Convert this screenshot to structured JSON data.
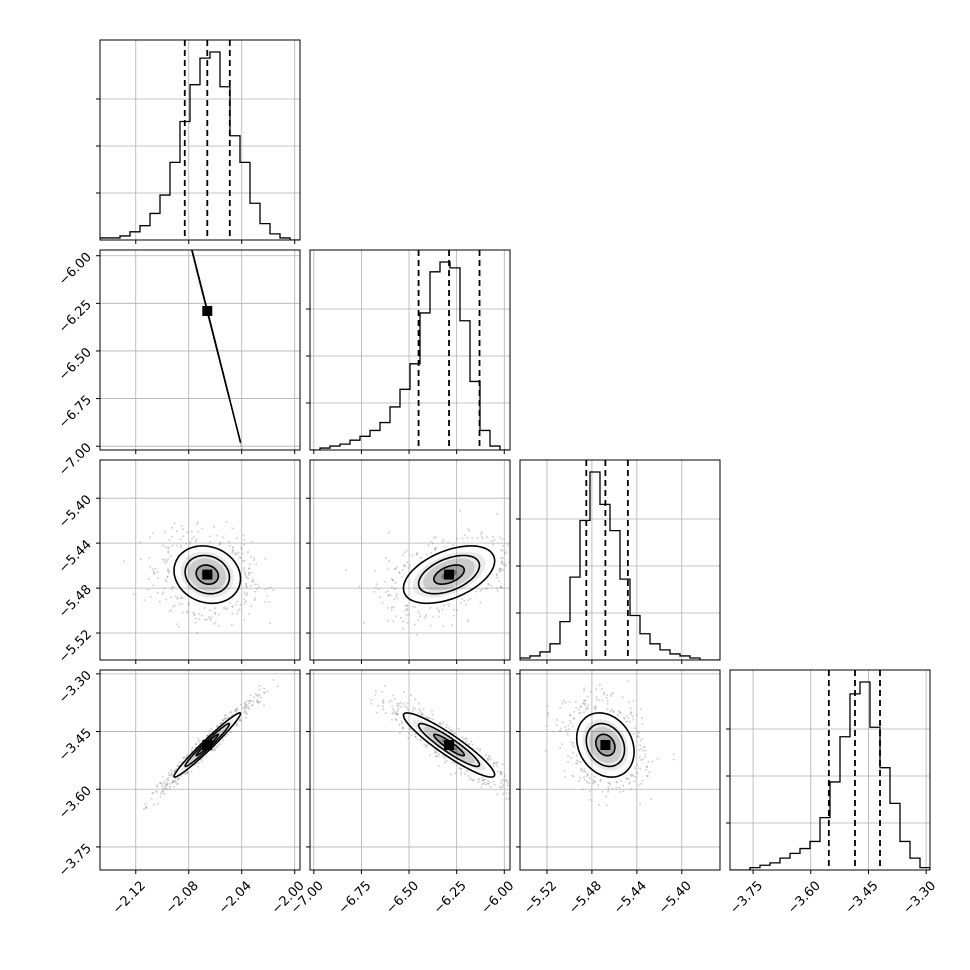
{
  "figure": {
    "type": "corner"
  },
  "chart_data": {
    "type": "corner",
    "n_params": 4,
    "params": [
      {
        "range": [
          -2.147,
          -1.996
        ],
        "ticks": [
          -2.12,
          -2.08,
          -2.04,
          -2.0
        ],
        "tick_labels": [
          "−2.12",
          "−2.08",
          "−2.04",
          "−2.00"
        ],
        "quantiles": [
          -2.083,
          -2.066,
          -2.049
        ]
      },
      {
        "range": [
          -7.02,
          -5.97
        ],
        "ticks": [
          -7.0,
          -6.75,
          -6.5,
          -6.25,
          -6.0
        ],
        "tick_labels": [
          "−7.00",
          "−6.75",
          "−6.50",
          "−6.25",
          "−6.00"
        ],
        "quantiles": [
          -6.45,
          -6.29,
          -6.13
        ]
      },
      {
        "range": [
          -5.544,
          -5.366
        ],
        "ticks": [
          -5.52,
          -5.48,
          -5.44,
          -5.4
        ],
        "tick_labels": [
          "−5.52",
          "−5.48",
          "−5.44",
          "−5.40"
        ],
        "quantiles": [
          -5.485,
          -5.468,
          -5.448
        ]
      },
      {
        "range": [
          -3.81,
          -3.29
        ],
        "ticks": [
          -3.75,
          -3.6,
          -3.45,
          -3.3
        ],
        "tick_labels": [
          "−3.75",
          "−3.60",
          "−3.45",
          "−3.30"
        ],
        "quantiles": [
          -3.553,
          -3.485,
          -3.42
        ]
      }
    ],
    "histograms": [
      {
        "edges_start": -2.147,
        "bin_width": 0.00755,
        "counts": [
          1,
          1,
          2,
          4,
          7,
          13,
          22,
          38,
          58,
          76,
          89,
          92,
          75,
          51,
          38,
          18,
          8,
          3,
          1,
          0
        ]
      },
      {
        "edges_start": -7.02,
        "bin_width": 0.0525,
        "counts": [
          0,
          1,
          2,
          3,
          5,
          7,
          10,
          14,
          22,
          31,
          44,
          70,
          91,
          96,
          93,
          66,
          35,
          10,
          2,
          0
        ]
      },
      {
        "edges_start": -5.544,
        "bin_width": 0.0089,
        "counts": [
          1,
          2,
          4,
          8,
          19,
          41,
          69,
          93,
          77,
          64,
          40,
          22,
          13,
          8,
          5,
          3,
          2,
          1,
          0,
          0
        ]
      },
      {
        "edges_start": -3.81,
        "bin_width": 0.026,
        "counts": [
          0,
          0,
          1,
          2,
          3,
          5,
          7,
          9,
          12,
          22,
          37,
          56,
          74,
          79,
          60,
          43,
          28,
          12,
          5,
          1
        ]
      }
    ],
    "pairs": [
      {
        "x": 0,
        "y": 1,
        "center": [
          -2.066,
          -6.29
        ],
        "cov": [
          [
            0.00028,
            -0.0077
          ],
          [
            -0.0077,
            0.0255
          ]
        ]
      },
      {
        "x": 0,
        "y": 2,
        "center": [
          -2.066,
          -5.468
        ],
        "cov": [
          [
            0.00028,
            -4e-05
          ],
          [
            -4e-05,
            0.00029
          ]
        ]
      },
      {
        "x": 1,
        "y": 2,
        "center": [
          -6.29,
          -5.468
        ],
        "cov": [
          [
            0.0255,
            0.0013
          ],
          [
            0.0013,
            0.00029
          ]
        ]
      },
      {
        "x": 0,
        "y": 3,
        "center": [
          -2.066,
          -3.485
        ],
        "cov": [
          [
            0.00028,
            0.00091
          ],
          [
            0.00091,
            0.0031
          ]
        ]
      },
      {
        "x": 1,
        "y": 3,
        "center": [
          -6.29,
          -3.485
        ],
        "cov": [
          [
            0.0255,
            -0.0082
          ],
          [
            -0.0082,
            0.0031
          ]
        ]
      },
      {
        "x": 2,
        "y": 3,
        "center": [
          -5.468,
          -3.485
        ],
        "cov": [
          [
            0.00029,
            -0.0002
          ],
          [
            -0.0002,
            0.0031
          ]
        ]
      }
    ],
    "contour_levels": [
      0.5,
      1.0,
      1.5
    ],
    "colors": {
      "line": "#000000",
      "grid": "#b0b0b0",
      "points": "#7f7f7f"
    },
    "grid": true
  }
}
